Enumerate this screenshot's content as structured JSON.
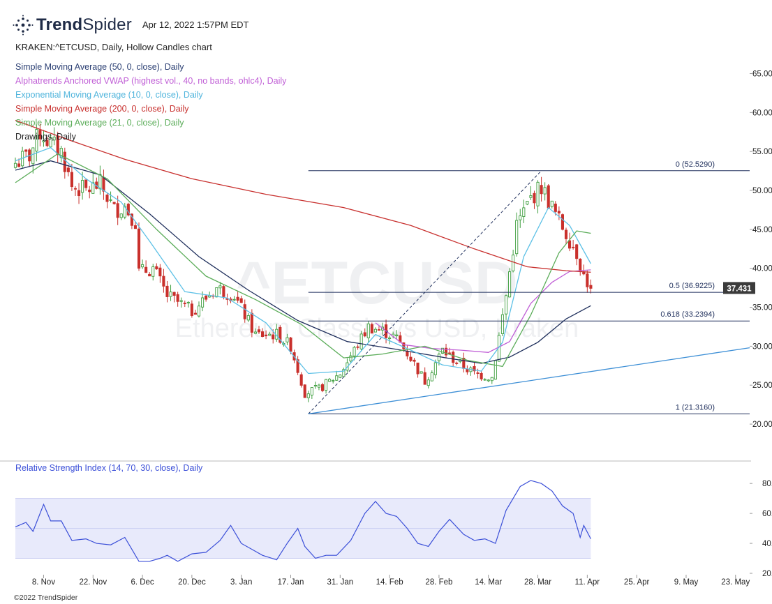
{
  "header": {
    "brand_bold": "Trend",
    "brand_light": "Spider",
    "timestamp": "Apr 12, 2022 1:57PM EDT",
    "symbol_line": "KRAKEN:^ETCUSD, Daily, Hollow Candles chart"
  },
  "watermark": {
    "symbol": "^ETCUSD",
    "name": "Ethereum Classic vs USD, Kraken"
  },
  "legend": [
    {
      "label": "Simple Moving Average (50, 0, close), Daily",
      "color": "#1f2f5c"
    },
    {
      "label": "Alphatrends Anchored VWAP (highest vol., 40, no bands, ohlc4), Daily",
      "color": "#c05fd6"
    },
    {
      "label": "Exponential Moving Average (10, 0, close), Daily",
      "color": "#5cc0e6"
    },
    {
      "label": "Simple Moving Average (200, 0, close), Daily",
      "color": "#c8302e"
    },
    {
      "label": "Simple Moving Average (21, 0, close), Daily",
      "color": "#5cad5a"
    },
    {
      "label": "Drawings, Daily",
      "color": "#222222"
    }
  ],
  "copyright": "©2022 TrendSpider",
  "colors": {
    "up": "#3e9e3e",
    "down": "#c9302c",
    "sma50": "#1f2f5c",
    "vwap": "#c05fd6",
    "ema10": "#5cc0e6",
    "sma200": "#c8302e",
    "sma21": "#5cad5a",
    "trendline": "#3d8fd6",
    "fib": "#1f2f5c",
    "rsi": "#3b4fd8",
    "rsi_band": "#e8eafb"
  },
  "chart_data": [
    {
      "type": "candlestick",
      "title": "KRAKEN:^ETCUSD, Daily, Hollow Candles chart",
      "x_type": "date",
      "xlim": [
        "2021-10-31",
        "2022-05-27"
      ],
      "ylim": [
        17.5,
        68
      ],
      "y_ticks": [
        "65.0000",
        "60.0000",
        "55.0000",
        "50.0000",
        "45.0000",
        "40.0000",
        "35.0000",
        "30.0000",
        "25.0000",
        "20.0000"
      ],
      "y_tick_values": [
        65,
        60,
        55,
        50,
        45,
        40,
        35,
        30,
        25,
        20
      ],
      "x_ticks": [
        "8. Nov",
        "22. Nov",
        "6. Dec",
        "20. Dec",
        "3. Jan",
        "17. Jan",
        "31. Jan",
        "14. Feb",
        "28. Feb",
        "14. Mar",
        "28. Mar",
        "11. Apr",
        "25. Apr",
        "9. May",
        "23. May"
      ],
      "x_tick_dates": [
        "2021-11-08",
        "2021-11-22",
        "2021-12-06",
        "2021-12-20",
        "2022-01-03",
        "2022-01-17",
        "2022-01-31",
        "2022-02-14",
        "2022-02-28",
        "2022-03-14",
        "2022-03-28",
        "2022-04-11",
        "2022-04-25",
        "2022-05-09",
        "2022-05-23"
      ],
      "last_price_label": "37.431",
      "last_price": 37.431,
      "close_anchors": [
        {
          "date": "2021-10-31",
          "close": 53.5
        },
        {
          "date": "2021-11-04",
          "close": 54.5
        },
        {
          "date": "2021-11-07",
          "close": 57.5
        },
        {
          "date": "2021-11-10",
          "close": 56.0
        },
        {
          "date": "2021-11-13",
          "close": 55.0
        },
        {
          "date": "2021-11-16",
          "close": 50.5
        },
        {
          "date": "2021-11-20",
          "close": 50.0
        },
        {
          "date": "2021-11-24",
          "close": 50.8
        },
        {
          "date": "2021-11-28",
          "close": 47.5
        },
        {
          "date": "2021-12-01",
          "close": 48.0
        },
        {
          "date": "2021-12-04",
          "close": 46.0
        },
        {
          "date": "2021-12-05",
          "close": 39.5
        },
        {
          "date": "2021-12-09",
          "close": 40.0
        },
        {
          "date": "2021-12-13",
          "close": 36.5
        },
        {
          "date": "2021-12-20",
          "close": 34.5
        },
        {
          "date": "2021-12-27",
          "close": 37.5
        },
        {
          "date": "2022-01-01",
          "close": 36.5
        },
        {
          "date": "2022-01-07",
          "close": 31.5
        },
        {
          "date": "2022-01-13",
          "close": 31.5
        },
        {
          "date": "2022-01-17",
          "close": 30.0
        },
        {
          "date": "2022-01-21",
          "close": 24.0
        },
        {
          "date": "2022-01-25",
          "close": 24.5
        },
        {
          "date": "2022-01-31",
          "close": 26.5
        },
        {
          "date": "2022-02-04",
          "close": 29.5
        },
        {
          "date": "2022-02-08",
          "close": 32.5
        },
        {
          "date": "2022-02-12",
          "close": 32.0
        },
        {
          "date": "2022-02-16",
          "close": 31.0
        },
        {
          "date": "2022-02-20",
          "close": 28.5
        },
        {
          "date": "2022-02-24",
          "close": 25.5
        },
        {
          "date": "2022-03-01",
          "close": 29.5
        },
        {
          "date": "2022-03-05",
          "close": 28.0
        },
        {
          "date": "2022-03-10",
          "close": 26.5
        },
        {
          "date": "2022-03-15",
          "close": 26.0
        },
        {
          "date": "2022-03-19",
          "close": 36.5
        },
        {
          "date": "2022-03-22",
          "close": 45.5
        },
        {
          "date": "2022-03-26",
          "close": 49.0
        },
        {
          "date": "2022-03-29",
          "close": 50.5
        },
        {
          "date": "2022-04-02",
          "close": 47.0
        },
        {
          "date": "2022-04-05",
          "close": 44.5
        },
        {
          "date": "2022-04-08",
          "close": 42.0
        },
        {
          "date": "2022-04-10",
          "close": 39.0
        },
        {
          "date": "2022-04-12",
          "close": 37.431
        }
      ],
      "fib_levels": [
        {
          "label": "0 (52.5290)",
          "value": 52.529
        },
        {
          "label": "0.5 (36.9225)",
          "value": 36.9225
        },
        {
          "label": "0.618 (33.2394)",
          "value": 33.2394
        },
        {
          "label": "1 (21.3160)",
          "value": 21.316
        }
      ],
      "fib_anchor": {
        "low": {
          "date": "2022-01-22",
          "price": 21.316
        },
        "high": {
          "date": "2022-03-29",
          "price": 52.529
        }
      },
      "trendline": [
        {
          "date": "2022-01-22",
          "price": 21.316
        },
        {
          "date": "2022-05-27",
          "price": 29.8
        }
      ],
      "series": [
        {
          "name": "Simple Moving Average (50, 0, close), Daily",
          "points": [
            [
              "2021-10-31",
              52.6
            ],
            [
              "2021-11-10",
              53.8
            ],
            [
              "2021-11-24",
              52.0
            ],
            [
              "2021-12-08",
              47.0
            ],
            [
              "2021-12-22",
              41.5
            ],
            [
              "2022-01-05",
              37.2
            ],
            [
              "2022-01-19",
              33.3
            ],
            [
              "2022-02-02",
              30.6
            ],
            [
              "2022-02-16",
              29.6
            ],
            [
              "2022-03-02",
              28.5
            ],
            [
              "2022-03-12",
              27.8
            ],
            [
              "2022-03-20",
              28.6
            ],
            [
              "2022-03-28",
              30.5
            ],
            [
              "2022-04-05",
              33.5
            ],
            [
              "2022-04-12",
              35.2
            ]
          ]
        },
        {
          "name": "Alphatrends Anchored VWAP (highest vol., 40, no bands, ohlc4), Daily",
          "points": [
            [
              "2022-02-10",
              33.0
            ],
            [
              "2022-02-18",
              30.2
            ],
            [
              "2022-02-26",
              29.7
            ],
            [
              "2022-03-06",
              29.5
            ],
            [
              "2022-03-14",
              29.2
            ],
            [
              "2022-03-20",
              30.6
            ],
            [
              "2022-03-26",
              35.5
            ],
            [
              "2022-04-01",
              38.2
            ],
            [
              "2022-04-06",
              39.6
            ],
            [
              "2022-04-12",
              39.8
            ]
          ]
        },
        {
          "name": "Exponential Moving Average (10, 0, close), Daily",
          "points": [
            [
              "2021-10-31",
              53.8
            ],
            [
              "2021-11-10",
              55.5
            ],
            [
              "2021-11-20",
              51.5
            ],
            [
              "2021-11-30",
              48.5
            ],
            [
              "2021-12-08",
              43.5
            ],
            [
              "2021-12-18",
              37.0
            ],
            [
              "2021-12-30",
              36.2
            ],
            [
              "2022-01-10",
              33.0
            ],
            [
              "2022-01-22",
              26.5
            ],
            [
              "2022-02-01",
              26.8
            ],
            [
              "2022-02-10",
              31.5
            ],
            [
              "2022-02-20",
              29.5
            ],
            [
              "2022-03-01",
              27.6
            ],
            [
              "2022-03-12",
              26.8
            ],
            [
              "2022-03-18",
              30.5
            ],
            [
              "2022-03-24",
              41.5
            ],
            [
              "2022-03-31",
              47.8
            ],
            [
              "2022-04-06",
              45.5
            ],
            [
              "2022-04-12",
              40.6
            ]
          ]
        },
        {
          "name": "Simple Moving Average (200, 0, close), Daily",
          "points": [
            [
              "2021-10-31",
              59.0
            ],
            [
              "2021-11-15",
              56.5
            ],
            [
              "2021-12-01",
              54.0
            ],
            [
              "2021-12-20",
              51.5
            ],
            [
              "2022-01-10",
              49.5
            ],
            [
              "2022-02-01",
              47.8
            ],
            [
              "2022-02-20",
              45.5
            ],
            [
              "2022-03-10",
              42.5
            ],
            [
              "2022-03-25",
              40.2
            ],
            [
              "2022-04-05",
              39.7
            ],
            [
              "2022-04-12",
              39.5
            ]
          ]
        },
        {
          "name": "Simple Moving Average (21, 0, close), Daily",
          "points": [
            [
              "2021-10-31",
              51.0
            ],
            [
              "2021-11-12",
              54.7
            ],
            [
              "2021-11-26",
              51.5
            ],
            [
              "2021-12-10",
              45.0
            ],
            [
              "2021-12-24",
              39.0
            ],
            [
              "2022-01-07",
              36.0
            ],
            [
              "2022-01-20",
              32.8
            ],
            [
              "2022-02-01",
              28.5
            ],
            [
              "2022-02-12",
              29.0
            ],
            [
              "2022-02-24",
              30.0
            ],
            [
              "2022-03-08",
              28.2
            ],
            [
              "2022-03-18",
              27.4
            ],
            [
              "2022-03-26",
              34.0
            ],
            [
              "2022-04-03",
              42.0
            ],
            [
              "2022-04-08",
              44.8
            ],
            [
              "2022-04-12",
              44.5
            ]
          ]
        }
      ]
    },
    {
      "type": "line",
      "title": "Relative Strength Index (14, 70, 30, close), Daily",
      "x_type": "date",
      "xlim": [
        "2021-10-31",
        "2022-05-27"
      ],
      "ylim": [
        20,
        88
      ],
      "y_ticks": [
        "80.00",
        "60.00",
        "40.00",
        "20.00"
      ],
      "y_tick_values": [
        80,
        60,
        40,
        20
      ],
      "band": [
        30,
        70
      ],
      "midline": 50,
      "series": [
        {
          "name": "Relative Strength Index (14, 70, 30, close), Daily",
          "points": [
            [
              "2021-10-31",
              51
            ],
            [
              "2021-11-03",
              54
            ],
            [
              "2021-11-05",
              48
            ],
            [
              "2021-11-08",
              66
            ],
            [
              "2021-11-10",
              55
            ],
            [
              "2021-11-13",
              55
            ],
            [
              "2021-11-16",
              42
            ],
            [
              "2021-11-20",
              43
            ],
            [
              "2021-11-23",
              40
            ],
            [
              "2021-11-27",
              39
            ],
            [
              "2021-12-01",
              44
            ],
            [
              "2021-12-03",
              36
            ],
            [
              "2021-12-05",
              28
            ],
            [
              "2021-12-08",
              28
            ],
            [
              "2021-12-11",
              30
            ],
            [
              "2021-12-13",
              32
            ],
            [
              "2021-12-16",
              28
            ],
            [
              "2021-12-20",
              33
            ],
            [
              "2021-12-24",
              34
            ],
            [
              "2021-12-28",
              42
            ],
            [
              "2021-12-31",
              52
            ],
            [
              "2022-01-03",
              40
            ],
            [
              "2022-01-06",
              36
            ],
            [
              "2022-01-09",
              32
            ],
            [
              "2022-01-13",
              29
            ],
            [
              "2022-01-16",
              40
            ],
            [
              "2022-01-19",
              50
            ],
            [
              "2022-01-21",
              38
            ],
            [
              "2022-01-24",
              30
            ],
            [
              "2022-01-27",
              32
            ],
            [
              "2022-01-30",
              32
            ],
            [
              "2022-02-03",
              42
            ],
            [
              "2022-02-07",
              60
            ],
            [
              "2022-02-10",
              68
            ],
            [
              "2022-02-13",
              60
            ],
            [
              "2022-02-16",
              58
            ],
            [
              "2022-02-19",
              50
            ],
            [
              "2022-02-22",
              40
            ],
            [
              "2022-02-25",
              38
            ],
            [
              "2022-02-28",
              48
            ],
            [
              "2022-03-03",
              56
            ],
            [
              "2022-03-07",
              46
            ],
            [
              "2022-03-10",
              42
            ],
            [
              "2022-03-13",
              43
            ],
            [
              "2022-03-16",
              40
            ],
            [
              "2022-03-19",
              62
            ],
            [
              "2022-03-23",
              78
            ],
            [
              "2022-03-26",
              82
            ],
            [
              "2022-03-29",
              80
            ],
            [
              "2022-04-01",
              75
            ],
            [
              "2022-04-04",
              65
            ],
            [
              "2022-04-07",
              60
            ],
            [
              "2022-04-09",
              44
            ],
            [
              "2022-04-10",
              52
            ],
            [
              "2022-04-12",
              43
            ]
          ]
        }
      ]
    }
  ]
}
